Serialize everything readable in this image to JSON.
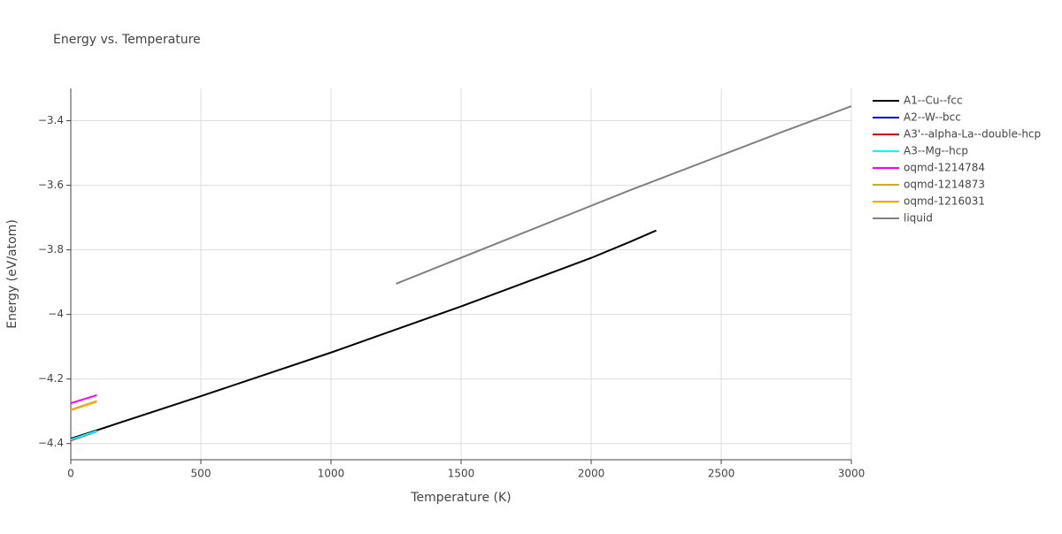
{
  "chart_data": {
    "type": "line",
    "title": "Energy vs. Temperature",
    "x_label": "Temperature (K)",
    "y_label": "Energy (eV/atom)",
    "xlim": [
      0,
      3000
    ],
    "xticks": [
      0,
      500,
      1000,
      1500,
      2000,
      2500,
      3000
    ],
    "ylim": [
      -4.45,
      -3.3
    ],
    "yticks": [
      {
        "value": -3.4,
        "label": "−3.4"
      },
      {
        "value": -3.6,
        "label": "−3.6"
      },
      {
        "value": -3.8,
        "label": "−3.8"
      },
      {
        "value": -4,
        "label": "−4"
      },
      {
        "value": -4.2,
        "label": "−4.2"
      },
      {
        "value": -4.4,
        "label": "−4.4"
      }
    ],
    "grid": true,
    "legend": "right",
    "series": [
      {
        "name": "A1--Cu--fcc",
        "color": "#000000",
        "x": [
          0,
          500,
          1000,
          1500,
          1850,
          2000,
          2150,
          2250
        ],
        "values": [
          -4.385,
          -4.253,
          -4.118,
          -3.975,
          -3.87,
          -3.825,
          -3.775,
          -3.74
        ]
      },
      {
        "name": "A2--W--bcc",
        "color": "#0000ff",
        "x": [
          0,
          100
        ],
        "values": [
          -4.39,
          -4.362
        ]
      },
      {
        "name": "A3'--alpha-La--double-hcp",
        "color": "#ff0000",
        "x": [
          0,
          100
        ],
        "values": [
          -4.39,
          -4.36
        ]
      },
      {
        "name": "A3--Mg--hcp",
        "color": "#00ffff",
        "x": [
          0,
          100
        ],
        "values": [
          -4.388,
          -4.361
        ]
      },
      {
        "name": "oqmd-1214784",
        "color": "#ff00ff",
        "x": [
          0,
          100
        ],
        "values": [
          -4.275,
          -4.25
        ]
      },
      {
        "name": "oqmd-1214873",
        "color": "#daa520",
        "x": [
          0,
          100
        ],
        "values": [
          -4.295,
          -4.268
        ]
      },
      {
        "name": "oqmd-1216031",
        "color": "#ffa500",
        "x": [
          0,
          100
        ],
        "values": [
          -4.296,
          -4.27
        ]
      },
      {
        "name": "liquid",
        "color": "#808080",
        "x": [
          1250,
          2150,
          2750,
          3000
        ],
        "values": [
          -3.905,
          -3.615,
          -3.43,
          -3.355
        ]
      }
    ]
  }
}
